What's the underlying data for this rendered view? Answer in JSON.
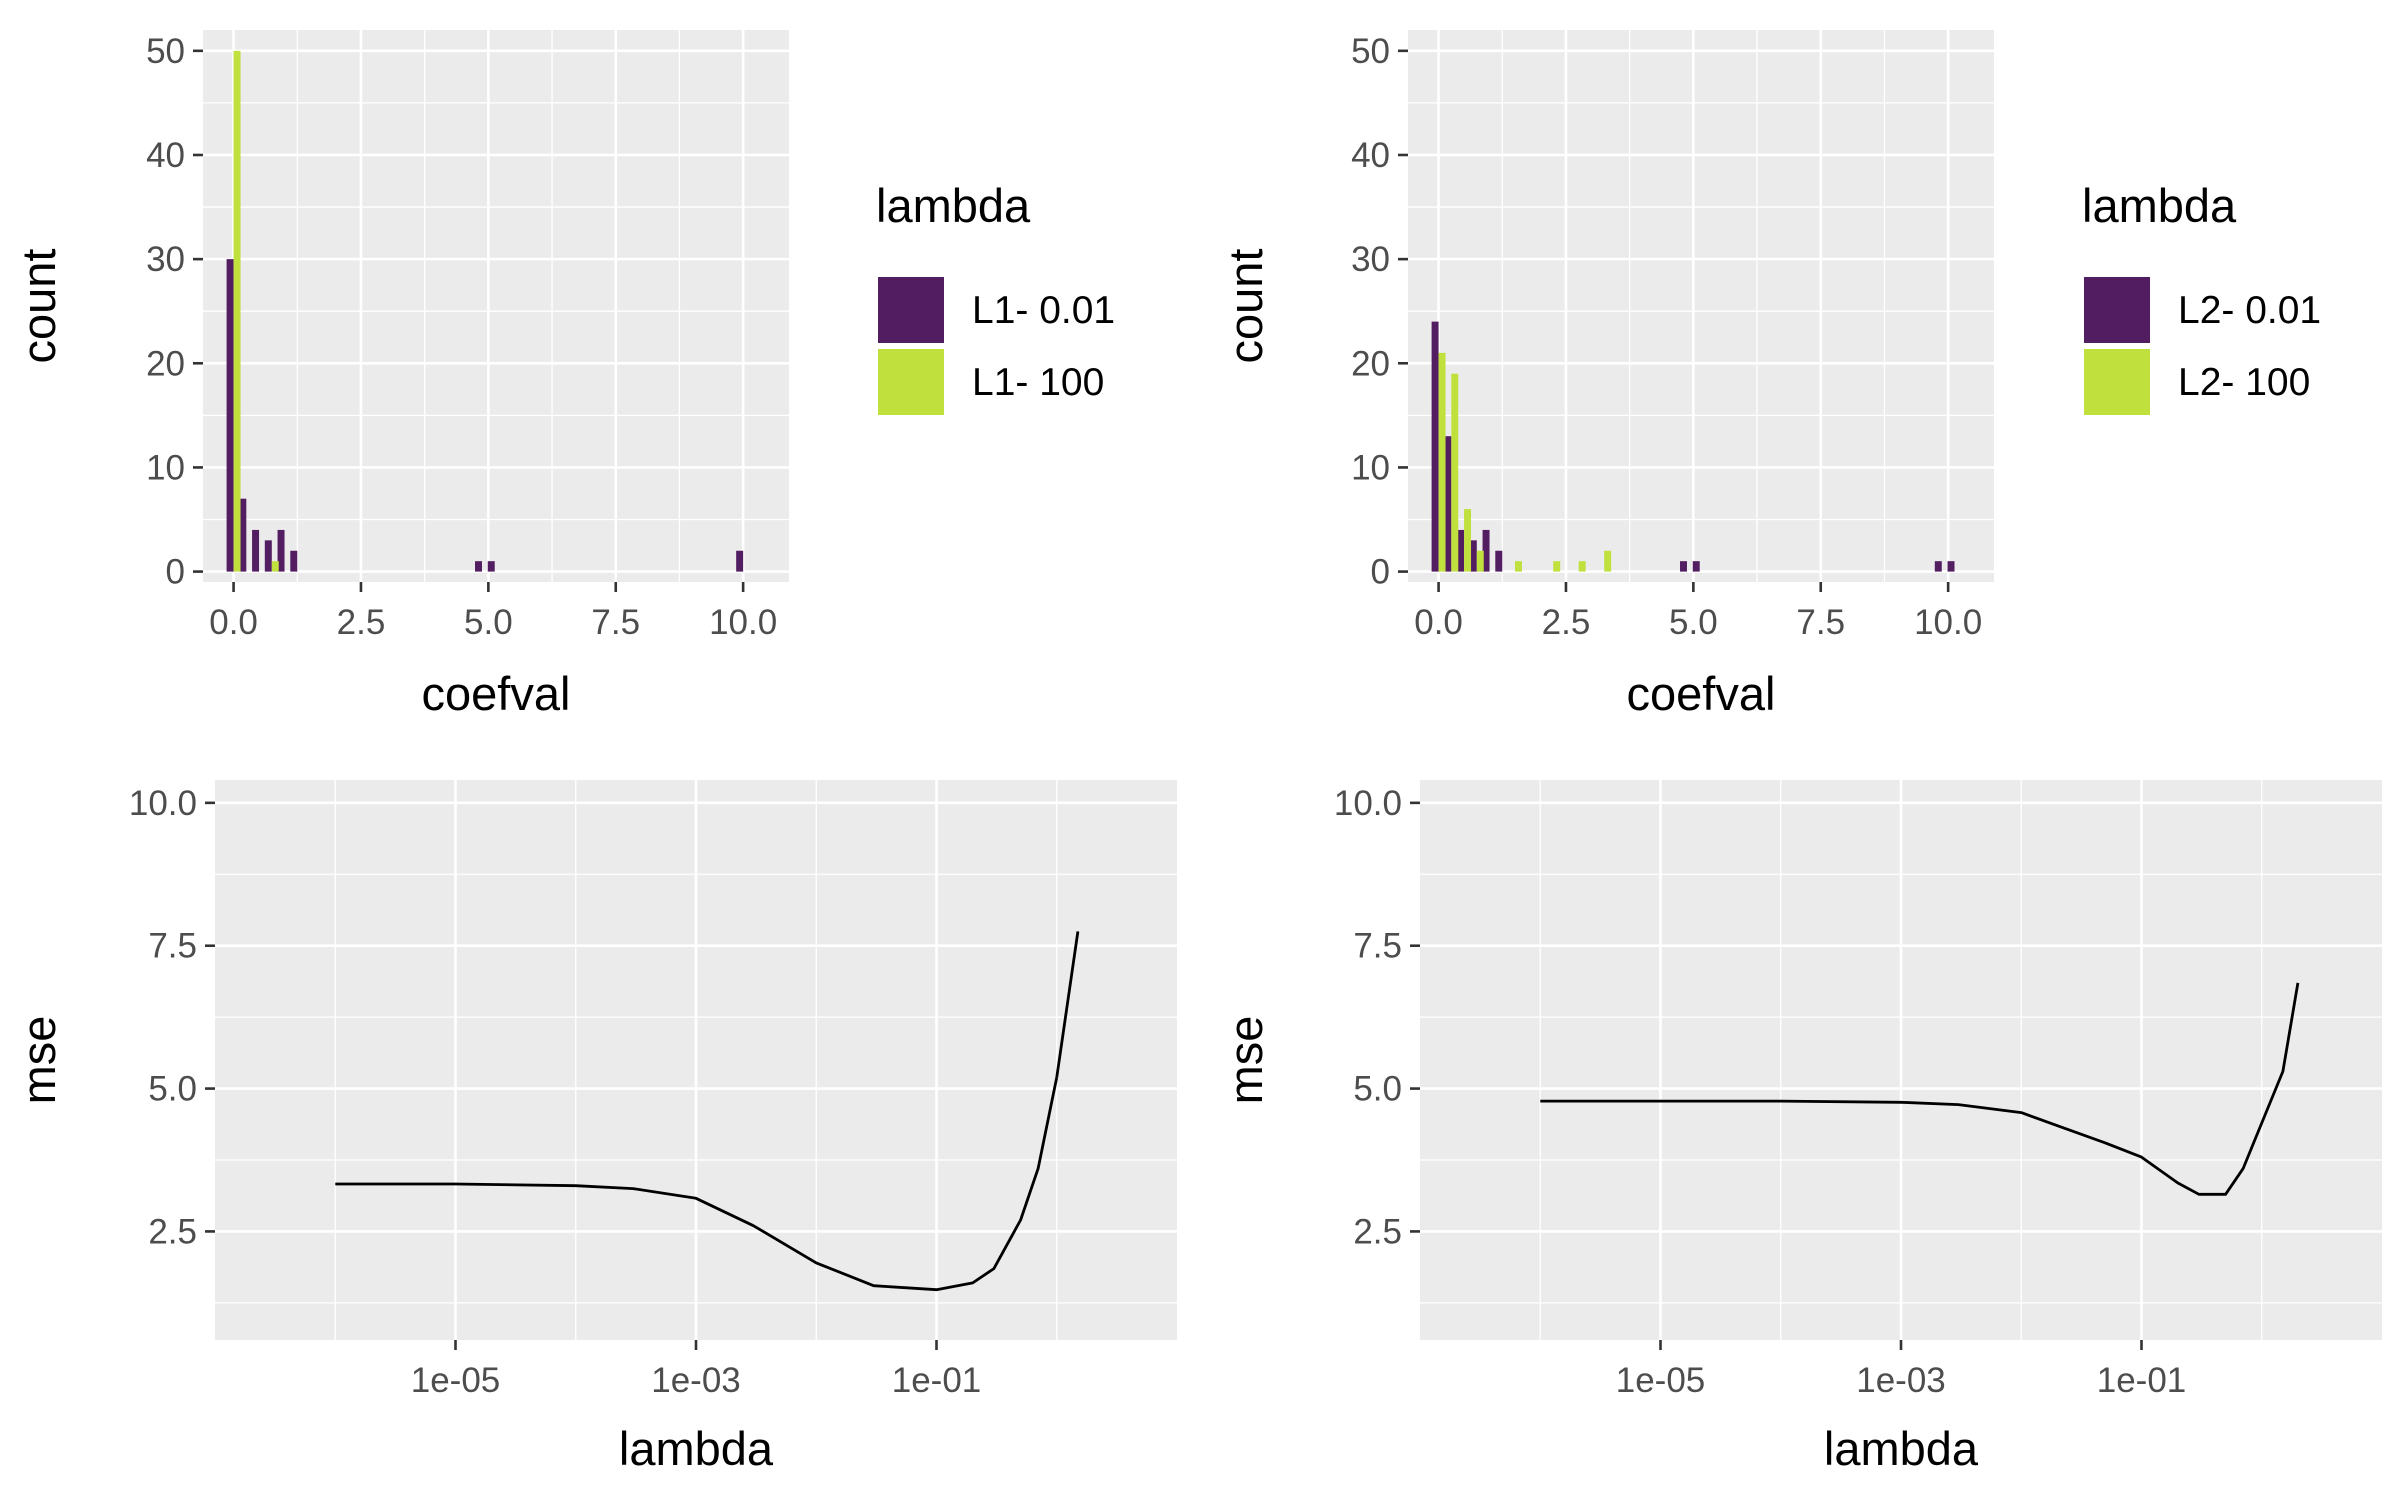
{
  "chart_data": [
    {
      "type": "bar",
      "xlabel": "coefval",
      "ylabel": "count",
      "xlim": [
        -0.6,
        10.9
      ],
      "ylim": [
        -1,
        52
      ],
      "xticks": [
        0,
        2.5,
        5,
        7.5,
        10
      ],
      "xtick_labels": [
        "0.0",
        "2.5",
        "5.0",
        "7.5",
        "10.0"
      ],
      "yticks": [
        0,
        10,
        20,
        30,
        40,
        50
      ],
      "ytick_labels": [
        "0",
        "10",
        "20",
        "30",
        "40",
        "50"
      ],
      "grid": true,
      "legend": {
        "title": "lambda",
        "position": "right"
      },
      "series": [
        {
          "name": "L1- 0.01",
          "color": "#531d62",
          "x": [
            0.0,
            0.25,
            0.5,
            0.75,
            1.0,
            1.25,
            4.875,
            5.125,
            10.0
          ],
          "values": [
            30,
            7,
            4,
            3,
            4,
            2,
            1,
            1,
            2
          ]
        },
        {
          "name": "L1- 100",
          "color": "#bfe03d",
          "x": [
            0.0,
            0.75
          ],
          "values": [
            50,
            1
          ]
        }
      ]
    },
    {
      "type": "bar",
      "xlabel": "coefval",
      "ylabel": "count",
      "xlim": [
        -0.6,
        10.9
      ],
      "ylim": [
        -1,
        52
      ],
      "xticks": [
        0,
        2.5,
        5,
        7.5,
        10
      ],
      "xtick_labels": [
        "0.0",
        "2.5",
        "5.0",
        "7.5",
        "10.0"
      ],
      "yticks": [
        0,
        10,
        20,
        30,
        40,
        50
      ],
      "ytick_labels": [
        "0",
        "10",
        "20",
        "30",
        "40",
        "50"
      ],
      "grid": true,
      "legend": {
        "title": "lambda",
        "position": "right"
      },
      "series": [
        {
          "name": "L2- 0.01",
          "color": "#531d62",
          "x": [
            0.0,
            0.25,
            0.5,
            0.75,
            1.0,
            1.25,
            4.875,
            5.125,
            9.875,
            10.125
          ],
          "values": [
            24,
            13,
            4,
            3,
            4,
            2,
            1,
            1,
            1,
            1
          ]
        },
        {
          "name": "L2- 100",
          "color": "#bfe03d",
          "x": [
            0.0,
            0.25,
            0.5,
            0.75,
            1.5,
            2.25,
            2.75,
            3.25
          ],
          "values": [
            21,
            19,
            6,
            2,
            1,
            1,
            1,
            2
          ]
        }
      ]
    },
    {
      "type": "line",
      "xlabel": "lambda",
      "ylabel": "mse",
      "xscale": "log",
      "xlim": [
        1e-07,
        10
      ],
      "ylim": [
        0.6,
        10.4
      ],
      "xticks": [
        1e-05,
        0.001,
        0.1
      ],
      "xtick_labels": [
        "1e-05",
        "1e-03",
        "1e-01"
      ],
      "yticks": [
        2.5,
        5.0,
        7.5,
        10.0
      ],
      "ytick_labels": [
        "2.5",
        "5.0",
        "7.5",
        "10.0"
      ],
      "grid": true,
      "series": [
        {
          "color": "#000000",
          "x": [
            1e-06,
            1e-05,
            0.0001,
            0.0003,
            0.001,
            0.003,
            0.01,
            0.03,
            0.1,
            0.2,
            0.3,
            0.5,
            0.7,
            1.0
          ],
          "values": [
            3.33,
            3.33,
            3.3,
            3.25,
            3.08,
            2.6,
            1.95,
            1.55,
            1.48,
            1.6,
            1.85,
            2.7,
            3.6,
            5.2
          ]
        },
        {
          "color": "#000000",
          "x": [
            1.0,
            1.5
          ],
          "values": [
            5.2,
            7.75
          ]
        }
      ]
    },
    {
      "type": "line",
      "xlabel": "lambda",
      "ylabel": "mse",
      "xscale": "log",
      "xlim": [
        1e-07,
        10
      ],
      "ylim": [
        0.6,
        10.4
      ],
      "xticks": [
        1e-05,
        0.001,
        0.1
      ],
      "xtick_labels": [
        "1e-05",
        "1e-03",
        "1e-01"
      ],
      "yticks": [
        2.5,
        5.0,
        7.5,
        10.0
      ],
      "ytick_labels": [
        "2.5",
        "5.0",
        "7.5",
        "10.0"
      ],
      "grid": true,
      "series": [
        {
          "color": "#000000",
          "x": [
            1e-06,
            1e-05,
            0.0001,
            0.001,
            0.003,
            0.01,
            0.02,
            0.05,
            0.1,
            0.2,
            0.3,
            0.5,
            0.7,
            1.0,
            1.5,
            2.0
          ],
          "values": [
            4.78,
            4.78,
            4.78,
            4.76,
            4.72,
            4.58,
            4.35,
            4.05,
            3.8,
            3.35,
            3.15,
            3.15,
            3.6,
            4.4,
            5.3,
            6.85
          ]
        }
      ]
    }
  ]
}
